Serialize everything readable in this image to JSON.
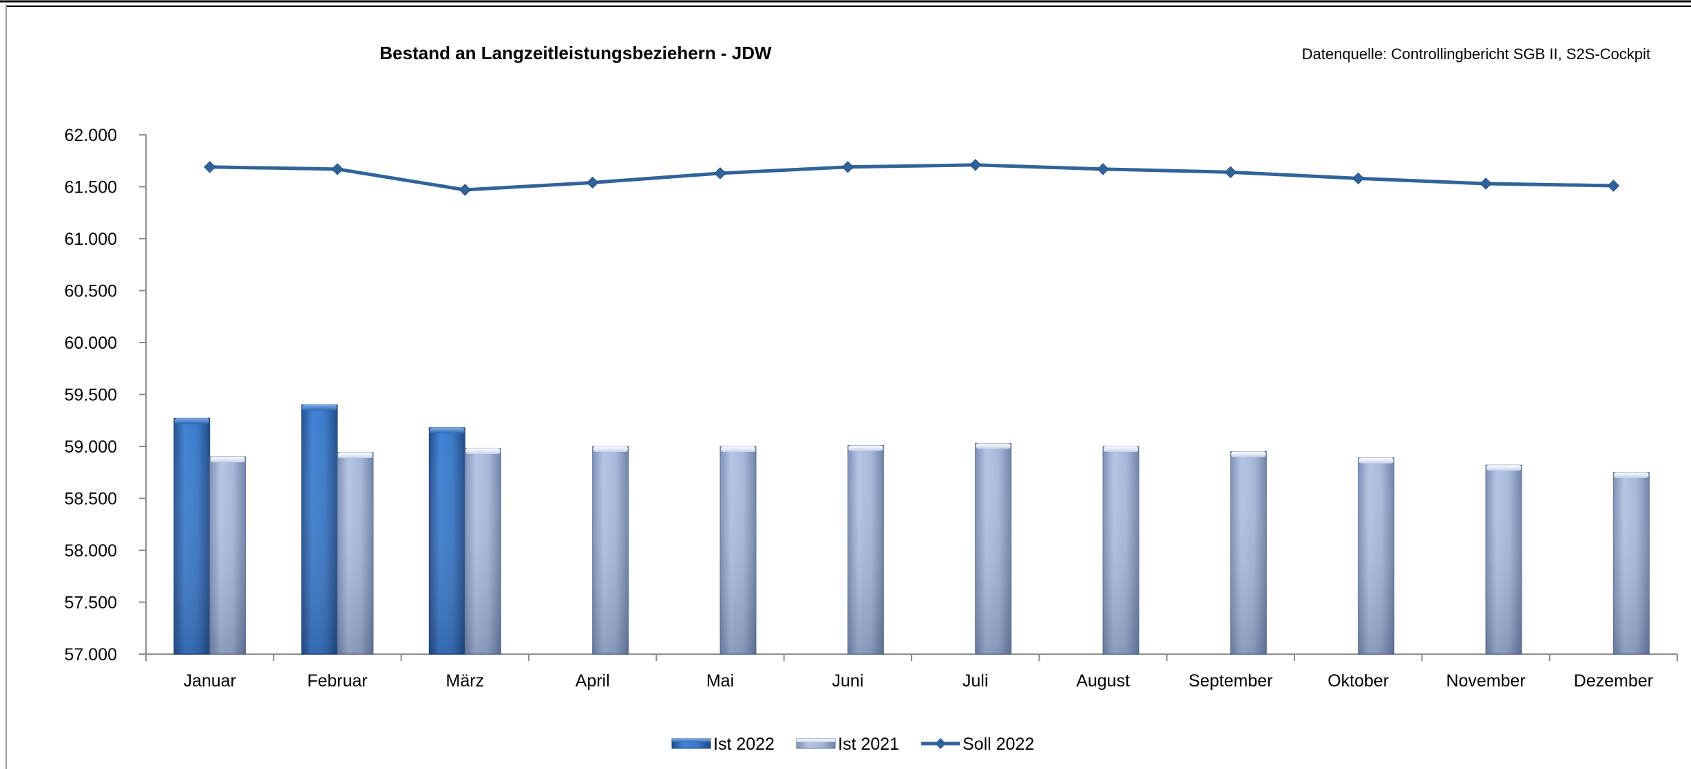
{
  "chart_data": {
    "type": "bar",
    "title": "Bestand an Langzeitleistungsbeziehern - JDW",
    "source": "Datenquelle: Controllingbericht SGB II, S2S-Cockpit",
    "categories": [
      "Januar",
      "Februar",
      "März",
      "April",
      "Mai",
      "Juni",
      "Juli",
      "August",
      "September",
      "Oktober",
      "November",
      "Dezember"
    ],
    "ylim": [
      57000,
      62000
    ],
    "yticks": [
      57000,
      57500,
      58000,
      58500,
      59000,
      59500,
      60000,
      60500,
      61000,
      61500,
      62000
    ],
    "ytick_labels": [
      "57.000",
      "57.500",
      "58.000",
      "58.500",
      "59.000",
      "59.500",
      "60.000",
      "60.500",
      "61.000",
      "61.500",
      "62.000"
    ],
    "grid": false,
    "legend_position": "bottom",
    "series": [
      {
        "name": "Ist 2022",
        "type": "bar",
        "color": "#3a78c8",
        "values": [
          59270,
          59400,
          59180,
          null,
          null,
          null,
          null,
          null,
          null,
          null,
          null,
          null
        ]
      },
      {
        "name": "Ist 2021",
        "type": "bar",
        "color": "#a9bbdc",
        "values": [
          58900,
          58940,
          58980,
          59000,
          59000,
          59010,
          59030,
          59000,
          58950,
          58890,
          58820,
          58750
        ]
      },
      {
        "name": "Soll 2022",
        "type": "line",
        "color": "#31639b",
        "values": [
          61690,
          61670,
          61470,
          61540,
          61630,
          61690,
          61710,
          61670,
          61640,
          61580,
          61530,
          61510
        ]
      }
    ]
  }
}
